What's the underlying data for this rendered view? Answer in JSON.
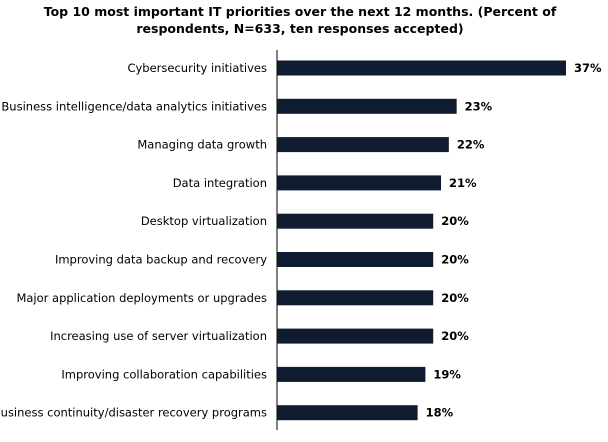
{
  "chart_data": {
    "type": "bar",
    "orientation": "horizontal",
    "title": "Top 10 most important IT priorities over the next 12 months. (Percent of respondents, N=633, ten responses accepted)",
    "categories": [
      "Cybersecurity initiatives",
      "Business intelligence/data analytics initiatives",
      "Managing data growth",
      "Data integration",
      "Desktop virtualization",
      "Improving data backup and recovery",
      "Major application deployments or upgrades",
      "Increasing use of server virtualization",
      "Improving collaboration capabilities",
      "Business continuity/disaster recovery programs"
    ],
    "values": [
      37,
      23,
      22,
      21,
      20,
      20,
      20,
      20,
      19,
      18
    ],
    "value_labels": [
      "37%",
      "23%",
      "22%",
      "21%",
      "20%",
      "20%",
      "20%",
      "20%",
      "19%",
      "18%"
    ],
    "xlim": [
      0,
      37
    ],
    "bar_color": "#0f1b2e",
    "grid": false
  }
}
